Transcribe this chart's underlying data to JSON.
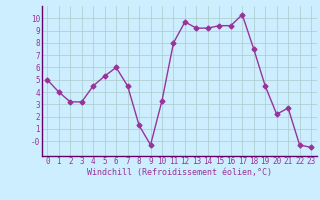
{
  "x": [
    0,
    1,
    2,
    3,
    4,
    5,
    6,
    7,
    8,
    9,
    10,
    11,
    12,
    13,
    14,
    15,
    16,
    17,
    18,
    19,
    20,
    21,
    22,
    23
  ],
  "y": [
    5.0,
    4.0,
    3.2,
    3.2,
    4.5,
    5.3,
    6.0,
    4.5,
    1.3,
    -0.3,
    3.3,
    8.0,
    9.7,
    9.2,
    9.2,
    9.4,
    9.4,
    10.3,
    7.5,
    4.5,
    2.2,
    2.7,
    -0.3,
    -0.5
  ],
  "line_color": "#993399",
  "marker": "D",
  "markersize": 2.5,
  "linewidth": 1.0,
  "bg_color": "#cceeff",
  "grid_color": "#aacccc",
  "xlabel": "Windchill (Refroidissement éolien,°C)",
  "xlabel_color": "#993399",
  "xlabel_fontsize": 6.0,
  "tick_color": "#993399",
  "tick_fontsize": 5.5,
  "ylim": [
    -1.2,
    11.0
  ],
  "yticks": [
    0,
    1,
    2,
    3,
    4,
    5,
    6,
    7,
    8,
    9,
    10
  ],
  "ytick_labels": [
    "-0",
    "1",
    "2",
    "3",
    "4",
    "5",
    "6",
    "7",
    "8",
    "9",
    "10"
  ]
}
